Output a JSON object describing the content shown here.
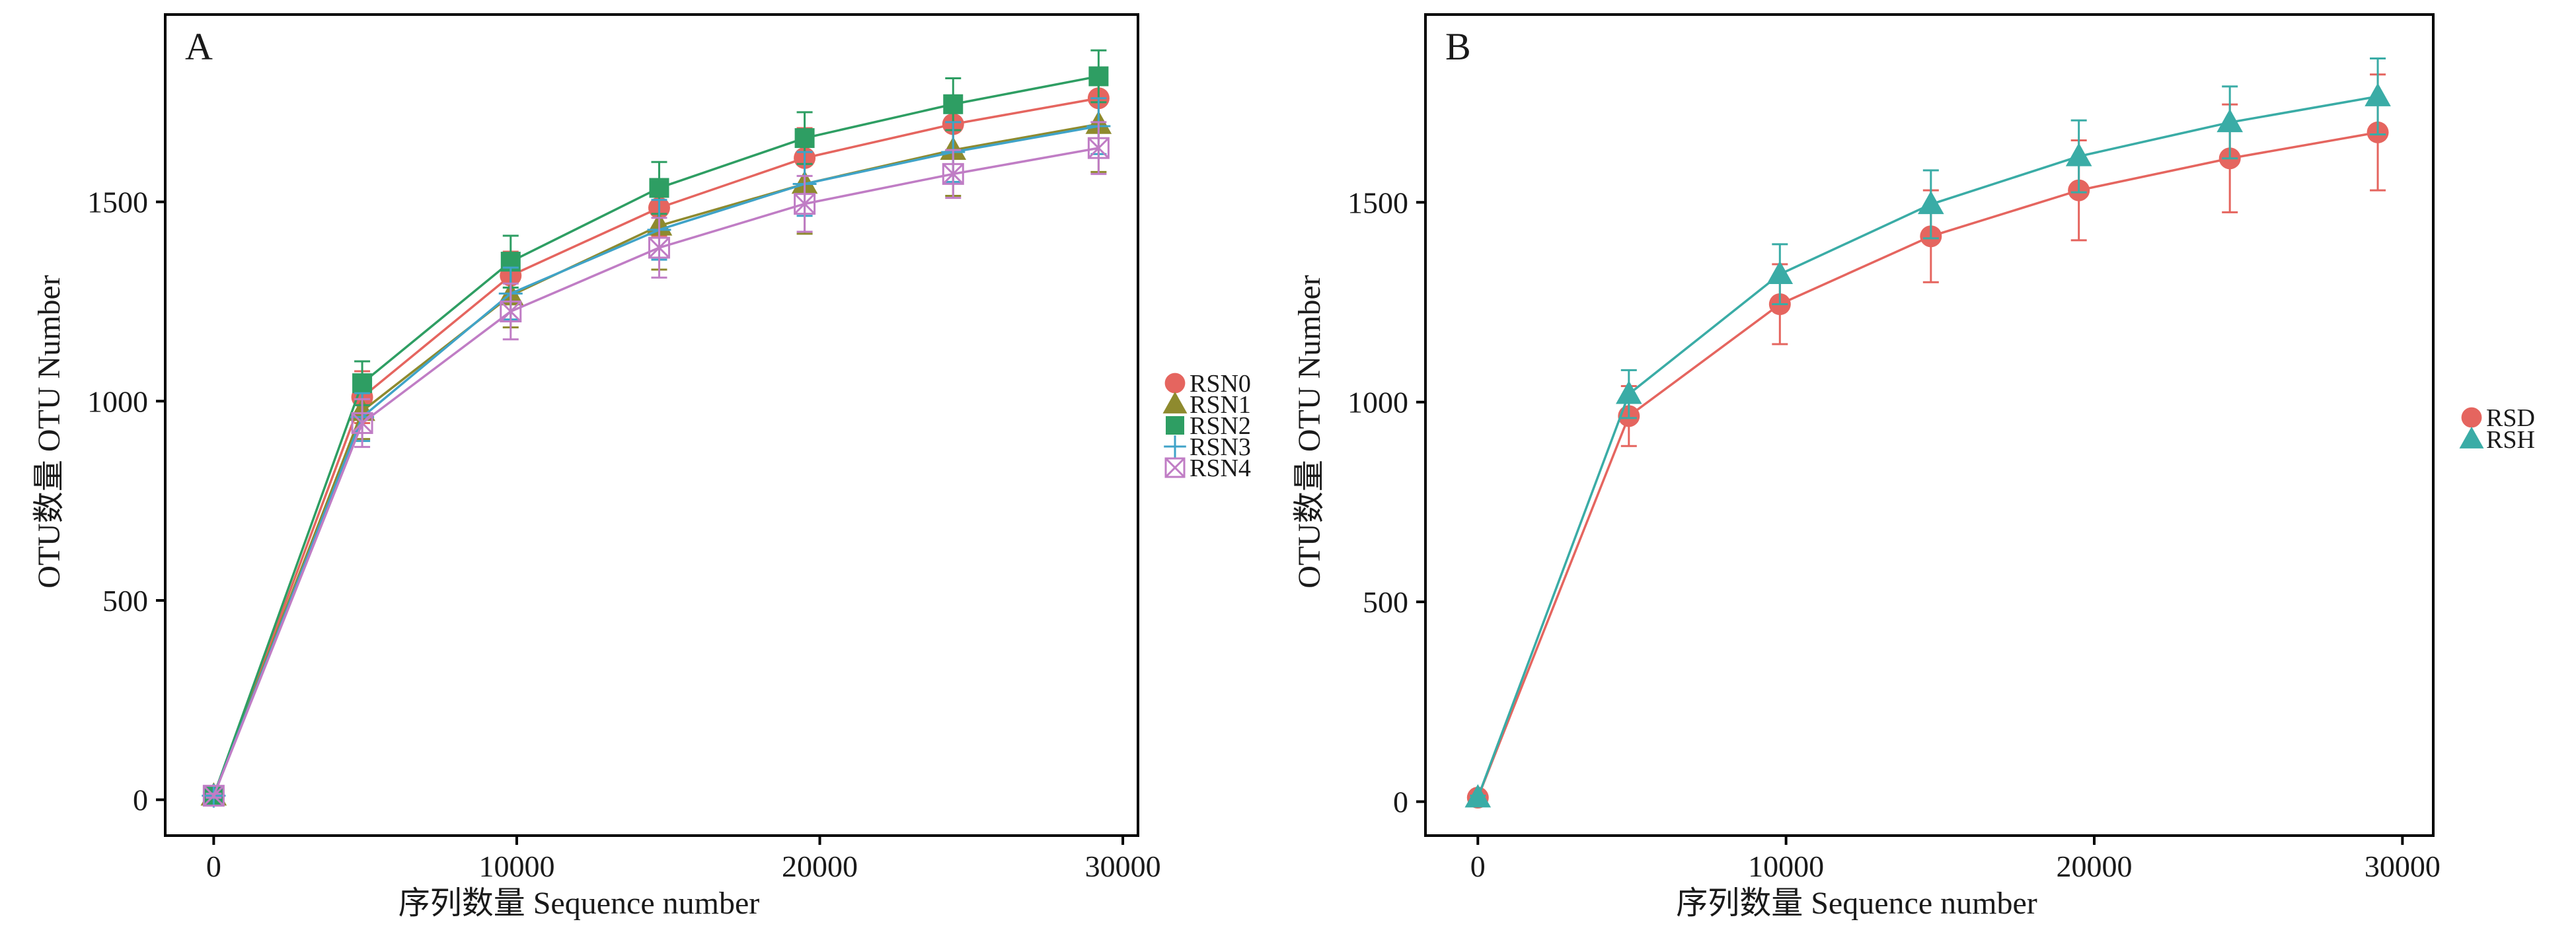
{
  "chart_data": [
    {
      "type": "line",
      "panel_label": "A",
      "xlabel": "序列数量 Sequence number",
      "ylabel": "OTU数量 OTU Number",
      "xlim": [
        -1600,
        30500
      ],
      "ylim": [
        -90,
        1970
      ],
      "x_ticks": [
        0,
        10000,
        20000,
        30000
      ],
      "y_ticks": [
        0,
        500,
        1000,
        1500
      ],
      "x_tick_labels": [
        "0",
        "10000",
        "20000",
        "30000"
      ],
      "y_tick_labels": [
        "0",
        "500",
        "1000",
        "1500"
      ],
      "x": [
        0,
        4900,
        9800,
        14700,
        19500,
        24400,
        29200
      ],
      "legend": {
        "position": "right",
        "markers_label": "legend"
      },
      "grid": false,
      "series": [
        {
          "name": "RSN0",
          "color": "#E5655F",
          "marker": "circle",
          "values": [
            10,
            1010,
            1315,
            1485,
            1610,
            1695,
            1760
          ],
          "errors": [
            5,
            65,
            60,
            70,
            75,
            65,
            70
          ]
        },
        {
          "name": "RSN1",
          "color": "#8E8A2E",
          "marker": "triangle",
          "values": [
            10,
            975,
            1265,
            1440,
            1545,
            1630,
            1695
          ],
          "errors": [
            5,
            70,
            80,
            110,
            125,
            115,
            120
          ]
        },
        {
          "name": "RSN2",
          "color": "#2E9E63",
          "marker": "square",
          "values": [
            10,
            1045,
            1350,
            1535,
            1660,
            1745,
            1815
          ],
          "errors": [
            5,
            55,
            65,
            65,
            65,
            65,
            65
          ]
        },
        {
          "name": "RSN3",
          "color": "#3FA3C8",
          "marker": "plus",
          "values": [
            10,
            960,
            1270,
            1430,
            1545,
            1625,
            1690
          ],
          "errors": [
            5,
            60,
            65,
            75,
            80,
            75,
            70
          ]
        },
        {
          "name": "RSN4",
          "color": "#C07DC5",
          "marker": "boxcross",
          "values": [
            10,
            945,
            1225,
            1385,
            1495,
            1570,
            1635
          ],
          "errors": [
            5,
            60,
            70,
            75,
            70,
            60,
            65
          ]
        }
      ]
    },
    {
      "type": "line",
      "panel_label": "B",
      "xlabel": "序列数量 Sequence number",
      "ylabel": "OTU数量 OTU Number",
      "xlim": [
        -1700,
        31000
      ],
      "ylim": [
        -85,
        1970
      ],
      "x_ticks": [
        0,
        10000,
        20000,
        30000
      ],
      "y_ticks": [
        0,
        500,
        1000,
        1500
      ],
      "x_tick_labels": [
        "0",
        "10000",
        "20000",
        "30000"
      ],
      "y_tick_labels": [
        "0",
        "500",
        "1000",
        "1500"
      ],
      "x": [
        0,
        4900,
        9800,
        14700,
        19500,
        24400,
        29200
      ],
      "legend": {
        "position": "right"
      },
      "grid": false,
      "series": [
        {
          "name": "RSD",
          "color": "#E5655F",
          "marker": "circle",
          "values": [
            10,
            965,
            1245,
            1415,
            1530,
            1610,
            1675
          ],
          "errors": [
            5,
            75,
            100,
            115,
            125,
            135,
            145
          ]
        },
        {
          "name": "RSH",
          "color": "#3AACA6",
          "marker": "triangle",
          "values": [
            10,
            1020,
            1320,
            1495,
            1615,
            1700,
            1765
          ],
          "errors": [
            5,
            60,
            75,
            85,
            90,
            90,
            95
          ]
        }
      ]
    }
  ]
}
